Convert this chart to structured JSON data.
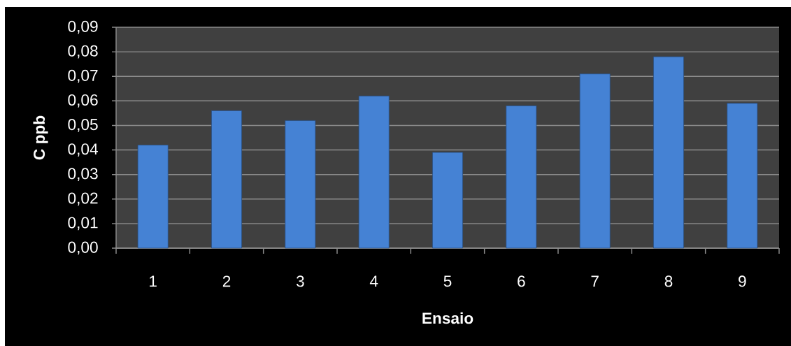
{
  "chart_data": {
    "type": "bar",
    "xlabel": "Ensaio",
    "ylabel": "C ppb",
    "categories": [
      "1",
      "2",
      "3",
      "4",
      "5",
      "6",
      "7",
      "8",
      "9"
    ],
    "values": [
      0.042,
      0.056,
      0.052,
      0.062,
      0.039,
      0.058,
      0.071,
      0.078,
      0.059
    ],
    "color": "#4582d4",
    "ylim": [
      0,
      0.09
    ],
    "yticks": [
      {
        "value": 0,
        "label": "0,00"
      },
      {
        "value": 0.01,
        "label": "0,01"
      },
      {
        "value": 0.02,
        "label": "0,02"
      },
      {
        "value": 0.03,
        "label": "0,03"
      },
      {
        "value": 0.04,
        "label": "0,04"
      },
      {
        "value": 0.05,
        "label": "0,05"
      },
      {
        "value": 0.06,
        "label": "0,06"
      },
      {
        "value": 0.07,
        "label": "0,07"
      },
      {
        "value": 0.08,
        "label": "0,08"
      },
      {
        "value": 0.09,
        "label": "0,09"
      }
    ],
    "grid": "y"
  }
}
